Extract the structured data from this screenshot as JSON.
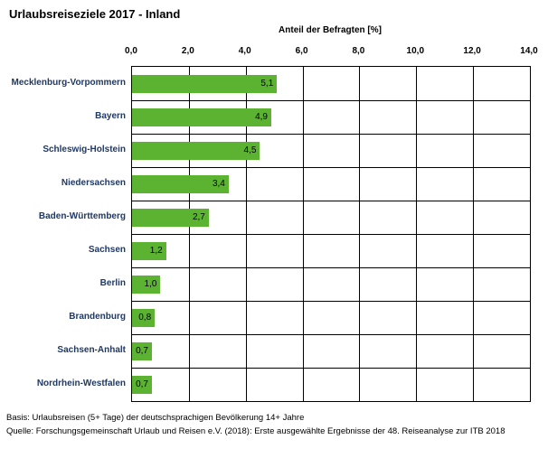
{
  "title": "Urlaubsreiseziele 2017 - Inland",
  "chart_data": {
    "type": "bar",
    "orientation": "horizontal",
    "title": "Urlaubsreiseziele 2017 - Inland",
    "axis_title": "Anteil der Befragten [%]",
    "categories": [
      "Mecklenburg-Vorpommern",
      "Bayern",
      "Schleswig-Holstein",
      "Niedersachsen",
      "Baden-Württemberg",
      "Sachsen",
      "Berlin",
      "Brandenburg",
      "Sachsen-Anhalt",
      "Nordrhein-Westfalen"
    ],
    "values": [
      5.1,
      4.9,
      4.5,
      3.4,
      2.7,
      1.2,
      1.0,
      0.8,
      0.7,
      0.7
    ],
    "value_labels": [
      "5,1",
      "4,9",
      "4,5",
      "3,4",
      "2,7",
      "1,2",
      "1,0",
      "0,8",
      "0,7",
      "0,7"
    ],
    "xlim": [
      0,
      14
    ],
    "xticks": [
      "0,0",
      "2,0",
      "4,0",
      "6,0",
      "8,0",
      "10,0",
      "12,0",
      "14,0"
    ],
    "grid": true,
    "legend": "none",
    "bar_color": "#5bb331",
    "category_label_color": "#1f3864",
    "grid_color": "#000000"
  },
  "footer": {
    "line1": "Basis: Urlaubsreisen (5+ Tage) der deutschsprachigen Bevölkerung 14+ Jahre",
    "line2": "Quelle: Forschungsgemeinschaft Urlaub und Reisen e.V. (2018): Erste ausgewählte Ergebnisse der 48. Reiseanalyse zur ITB 2018"
  }
}
